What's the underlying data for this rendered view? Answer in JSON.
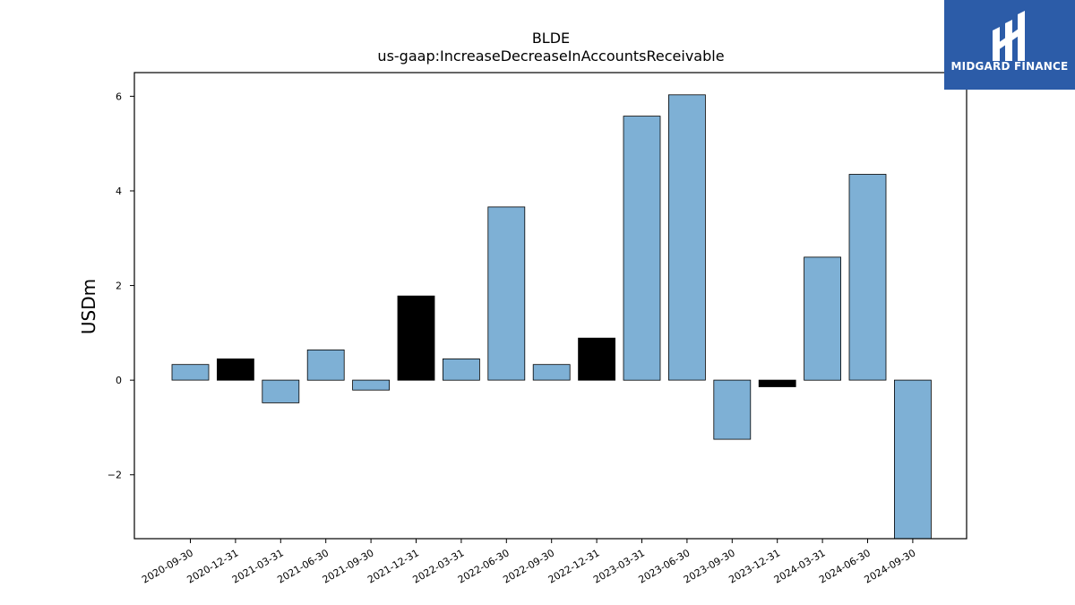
{
  "chart_data": {
    "type": "bar",
    "title": "BLDE",
    "subtitle": "us-gaap:IncreaseDecreaseInAccountsReceivable",
    "xlabel": "",
    "ylabel": "USDm",
    "categories": [
      "2020-09-30",
      "2020-12-31",
      "2021-03-31",
      "2021-06-30",
      "2021-09-30",
      "2021-12-31",
      "2022-03-31",
      "2022-06-30",
      "2022-09-30",
      "2022-12-31",
      "2023-03-31",
      "2023-06-30",
      "2023-09-30",
      "2023-12-31",
      "2024-03-31",
      "2024-06-30",
      "2024-09-30"
    ],
    "values": [
      0.33,
      0.45,
      -0.48,
      0.64,
      -0.21,
      1.78,
      0.45,
      3.66,
      0.33,
      0.89,
      5.58,
      6.03,
      -1.25,
      -0.14,
      2.6,
      4.35,
      -3.5
    ],
    "bar_colors": [
      "#7eb0d5",
      "#000000",
      "#7eb0d5",
      "#7eb0d5",
      "#7eb0d5",
      "#000000",
      "#7eb0d5",
      "#7eb0d5",
      "#7eb0d5",
      "#000000",
      "#7eb0d5",
      "#7eb0d5",
      "#7eb0d5",
      "#000000",
      "#7eb0d5",
      "#7eb0d5",
      "#7eb0d5"
    ],
    "ylim": [
      -3.35,
      6.5
    ],
    "yticks": [
      -2,
      0,
      2,
      4,
      6
    ],
    "ytick_labels": [
      "−2",
      "0",
      "2",
      "4",
      "6"
    ],
    "grid": false
  },
  "logo": {
    "text": "MIDGARD FINANCE",
    "background": "#2c5ca8"
  }
}
